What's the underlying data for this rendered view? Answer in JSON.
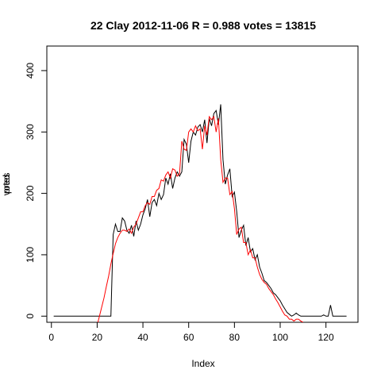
{
  "chart_data": {
    "type": "line",
    "title": "22 Clay 2012-11-06 R = 0.988 votes = 13815",
    "xlabel": "Index",
    "ylabel_overlap": [
      "votes",
      "pred"
    ],
    "xlim": [
      -2,
      134
    ],
    "ylim": [
      -10,
      440
    ],
    "xticks": [
      0,
      20,
      40,
      60,
      80,
      100,
      120
    ],
    "yticks": [
      0,
      100,
      200,
      300,
      400
    ],
    "grid": false,
    "legend": "none",
    "series": [
      {
        "color": "#000000",
        "x": [
          1,
          2,
          3,
          4,
          5,
          6,
          7,
          8,
          9,
          10,
          11,
          12,
          13,
          14,
          15,
          16,
          17,
          18,
          19,
          20,
          21,
          22,
          23,
          24,
          25,
          26,
          27,
          28,
          29,
          30,
          31,
          32,
          33,
          34,
          35,
          36,
          37,
          38,
          39,
          40,
          41,
          42,
          43,
          44,
          45,
          46,
          47,
          48,
          49,
          50,
          51,
          52,
          53,
          54,
          55,
          56,
          57,
          58,
          59,
          60,
          61,
          62,
          63,
          64,
          65,
          66,
          67,
          68,
          69,
          70,
          71,
          72,
          73,
          74,
          75,
          76,
          77,
          78,
          79,
          80,
          81,
          82,
          83,
          84,
          85,
          86,
          87,
          88,
          89,
          90,
          91,
          92,
          93,
          94,
          95,
          96,
          97,
          98,
          99,
          100,
          101,
          102,
          103,
          104,
          105,
          106,
          107,
          108,
          109,
          110,
          111,
          112,
          113,
          114,
          115,
          116,
          117,
          118,
          119,
          120,
          121,
          122,
          123,
          124,
          125,
          126,
          127,
          128,
          129
        ],
        "y": [
          0,
          0,
          0,
          0,
          0,
          0,
          0,
          0,
          0,
          0,
          0,
          0,
          0,
          0,
          0,
          0,
          0,
          0,
          0,
          0,
          0,
          0,
          0,
          0,
          0,
          0,
          133,
          150,
          138,
          138,
          160,
          155,
          140,
          135,
          148,
          130,
          155,
          140,
          150,
          165,
          175,
          190,
          162,
          185,
          190,
          180,
          200,
          190,
          198,
          225,
          215,
          232,
          208,
          225,
          235,
          228,
          235,
          288,
          280,
          250,
          285,
          300,
          295,
          308,
          312,
          300,
          320,
          282,
          322,
          310,
          330,
          335,
          312,
          345,
          255,
          215,
          230,
          240,
          195,
          202,
          170,
          128,
          140,
          148,
          115,
          128,
          105,
          110,
          92,
          100,
          80,
          70,
          58,
          55,
          50,
          45,
          38,
          35,
          30,
          25,
          18,
          12,
          6,
          3,
          0,
          2,
          5,
          2,
          0,
          0,
          0,
          0,
          0,
          0,
          0,
          0,
          0,
          0,
          2,
          0,
          0,
          18,
          0,
          0,
          0,
          0,
          0,
          0,
          0
        ]
      },
      {
        "color": "#ff0000",
        "x": [
          20,
          21,
          22,
          23,
          24,
          25,
          26,
          27,
          28,
          29,
          30,
          31,
          32,
          33,
          34,
          35,
          36,
          37,
          38,
          39,
          40,
          41,
          42,
          43,
          44,
          45,
          46,
          47,
          48,
          49,
          50,
          51,
          52,
          53,
          54,
          55,
          56,
          57,
          58,
          59,
          60,
          61,
          62,
          63,
          64,
          65,
          66,
          67,
          68,
          69,
          70,
          71,
          72,
          73,
          74,
          75,
          76,
          77,
          78,
          79,
          80,
          81,
          82,
          83,
          84,
          85,
          86,
          87,
          88,
          89,
          90,
          91,
          92,
          93,
          94,
          95,
          96,
          97,
          98,
          99,
          100,
          101,
          102,
          103,
          104,
          105,
          106,
          107,
          108,
          109,
          110
        ],
        "y": [
          -15,
          0,
          15,
          30,
          48,
          65,
          85,
          102,
          118,
          128,
          135,
          140,
          140,
          138,
          142,
          135,
          145,
          150,
          160,
          170,
          170,
          180,
          185,
          182,
          195,
          195,
          205,
          208,
          222,
          220,
          230,
          235,
          225,
          240,
          238,
          228,
          232,
          285,
          272,
          270,
          300,
          305,
          300,
          310,
          302,
          305,
          272,
          310,
          295,
          325,
          320,
          325,
          300,
          322,
          255,
          218,
          225,
          225,
          198,
          203,
          175,
          133,
          142,
          145,
          120,
          120,
          100,
          108,
          95,
          95,
          80,
          68,
          60,
          55,
          52,
          45,
          40,
          35,
          28,
          22,
          15,
          8,
          2,
          0,
          -5,
          -5,
          -8,
          -5,
          -5,
          -8,
          -10
        ]
      }
    ]
  }
}
